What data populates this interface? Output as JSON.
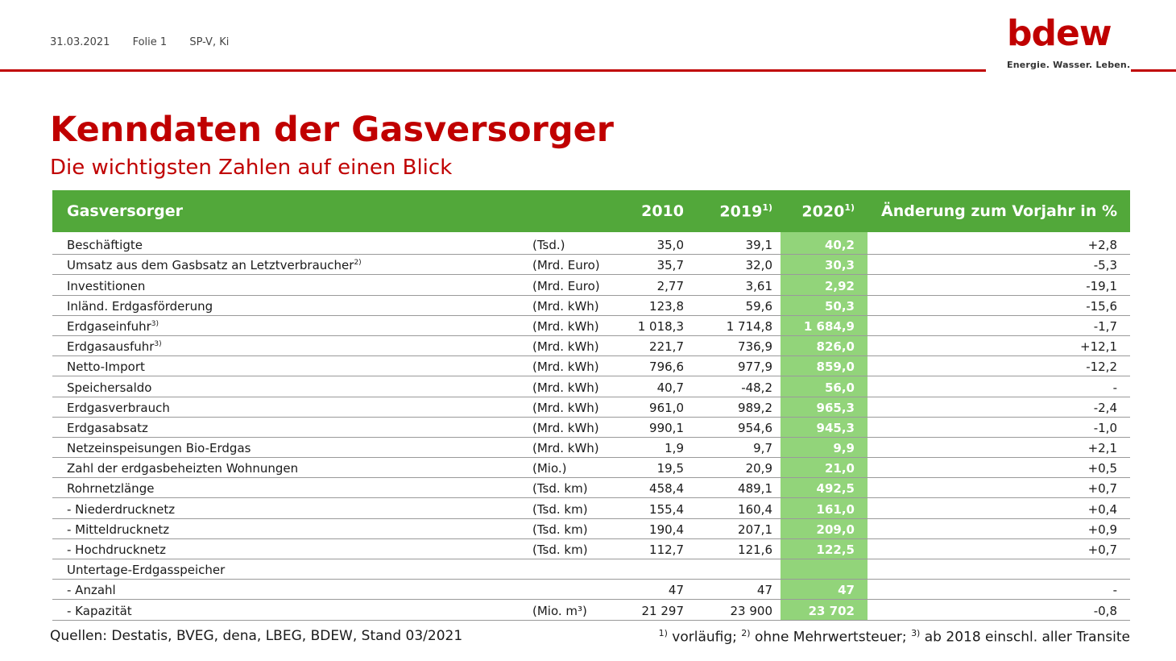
{
  "header": {
    "date": "31.03.2021",
    "slide": "Folie 1",
    "author": "SP-V, Ki"
  },
  "logo": {
    "word": "bdew",
    "tagline": "Energie. Wasser. Leben."
  },
  "title": "Kenndaten der Gasversorger",
  "subtitle": "Die wichtigsten Zahlen auf einen Blick",
  "table": {
    "headers": {
      "name": "Gasversorger",
      "y2010": "2010",
      "y2019": "2019",
      "y2019_note": "1)",
      "y2020": "2020",
      "y2020_note": "1)",
      "change": "Änderung zum Vorjahr in %"
    },
    "rows": [
      {
        "name": "Beschäftigte",
        "note": "",
        "unit": "(Tsd.)",
        "y2010": "35,0",
        "y2019": "39,1",
        "y2020": "40,2",
        "change": "+2,8"
      },
      {
        "name": "Umsatz aus dem Gasbsatz an Letztverbraucher",
        "note": "2)",
        "unit": "(Mrd. Euro)",
        "y2010": "35,7",
        "y2019": "32,0",
        "y2020": "30,3",
        "change": "-5,3"
      },
      {
        "name": "Investitionen",
        "note": "",
        "unit": "(Mrd. Euro)",
        "y2010": "2,77",
        "y2019": "3,61",
        "y2020": "2,92",
        "change": "-19,1"
      },
      {
        "name": "Inländ. Erdgasförderung",
        "note": "",
        "unit": "(Mrd. kWh)",
        "y2010": "123,8",
        "y2019": "59,6",
        "y2020": "50,3",
        "change": "-15,6"
      },
      {
        "name": "Erdgaseinfuhr",
        "note": "3)",
        "unit": "(Mrd. kWh)",
        "y2010": "1 018,3",
        "y2019": "1 714,8",
        "y2020": "1 684,9",
        "change": "-1,7"
      },
      {
        "name": "Erdgasausfuhr",
        "note": "3)",
        "unit": "(Mrd. kWh)",
        "y2010": "221,7",
        "y2019": "736,9",
        "y2020": "826,0",
        "change": "+12,1"
      },
      {
        "name": "Netto-Import",
        "note": "",
        "unit": "(Mrd. kWh)",
        "y2010": "796,6",
        "y2019": "977,9",
        "y2020": "859,0",
        "change": "-12,2"
      },
      {
        "name": "Speichersaldo",
        "note": "",
        "unit": "(Mrd. kWh)",
        "y2010": "40,7",
        "y2019": "-48,2",
        "y2020": "56,0",
        "change": "-"
      },
      {
        "name": "Erdgasverbrauch",
        "note": "",
        "unit": "(Mrd. kWh)",
        "y2010": "961,0",
        "y2019": "989,2",
        "y2020": "965,3",
        "change": "-2,4"
      },
      {
        "name": "Erdgasabsatz",
        "note": "",
        "unit": "(Mrd. kWh)",
        "y2010": "990,1",
        "y2019": "954,6",
        "y2020": "945,3",
        "change": "-1,0"
      },
      {
        "name": "Netzeinspeisungen Bio-Erdgas",
        "note": "",
        "unit": "(Mrd. kWh)",
        "y2010": "1,9",
        "y2019": "9,7",
        "y2020": "9,9",
        "change": "+2,1"
      },
      {
        "name": "Zahl der erdgasbeheizten Wohnungen",
        "note": "",
        "unit": "(Mio.)",
        "y2010": "19,5",
        "y2019": "20,9",
        "y2020": "21,0",
        "change": "+0,5"
      },
      {
        "name": "Rohrnetzlänge",
        "note": "",
        "unit": "(Tsd. km)",
        "y2010": "458,4",
        "y2019": "489,1",
        "y2020": "492,5",
        "change": "+0,7"
      },
      {
        "name": "- Niederdrucknetz",
        "note": "",
        "unit": "(Tsd. km)",
        "y2010": "155,4",
        "y2019": "160,4",
        "y2020": "161,0",
        "change": "+0,4"
      },
      {
        "name": "- Mitteldrucknetz",
        "note": "",
        "unit": "(Tsd. km)",
        "y2010": "190,4",
        "y2019": "207,1",
        "y2020": "209,0",
        "change": "+0,9"
      },
      {
        "name": "- Hochdrucknetz",
        "note": "",
        "unit": "(Tsd. km)",
        "y2010": "112,7",
        "y2019": "121,6",
        "y2020": "122,5",
        "change": "+0,7"
      },
      {
        "name": "Untertage-Erdgasspeicher",
        "note": "",
        "unit": "",
        "y2010": "",
        "y2019": "",
        "y2020": "",
        "change": ""
      },
      {
        "name": "- Anzahl",
        "note": "",
        "unit": "",
        "y2010": "47",
        "y2019": "47",
        "y2020": "47",
        "change": "-"
      },
      {
        "name": "- Kapazität",
        "note": "",
        "unit": "(Mio. m³)",
        "y2010": "21 297",
        "y2019": "23 900",
        "y2020": "23 702",
        "change": "-0,8"
      }
    ]
  },
  "footer": {
    "sources": "Quellen: Destatis, BVEG, dena, LBEG, BDEW, Stand 03/2021",
    "fn1_mark": "1)",
    "fn1_text": " vorläufig; ",
    "fn2_mark": "2)",
    "fn2_text": " ohne Mehrwertsteuer; ",
    "fn3_mark": "3)",
    "fn3_text": " ab 2018 einschl. aller Transite"
  },
  "colors": {
    "brand_red": "#c00000",
    "header_green": "#52a83a",
    "highlight_green": "#92d47a"
  }
}
